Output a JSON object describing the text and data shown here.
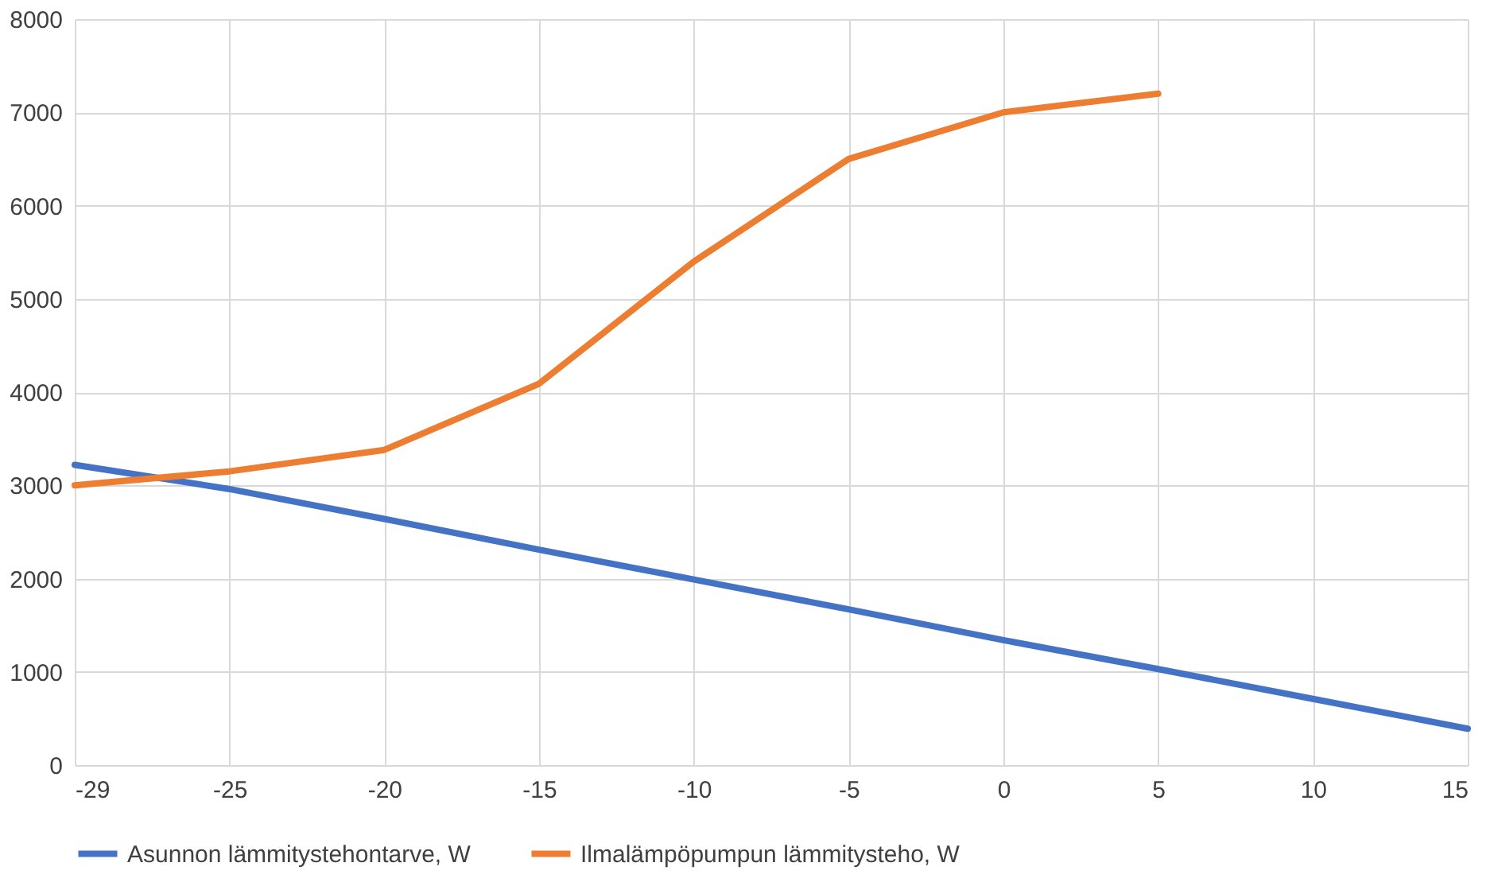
{
  "chart_data": {
    "type": "line",
    "categories": [
      "-29",
      "-25",
      "-20",
      "-15",
      "-10",
      "-5",
      "0",
      "5",
      "10",
      "15"
    ],
    "series": [
      {
        "name": "Asunnon lämmitystehontarve, W",
        "color": "#4472c4",
        "values": [
          3220,
          2960,
          2640,
          2310,
          1990,
          1670,
          1340,
          1030,
          710,
          390
        ]
      },
      {
        "name": "Ilmalämpöpumpun lämmitysteho, W",
        "color": "#ed7d31",
        "values": [
          3000,
          3150,
          3380,
          4090,
          5400,
          6500,
          7000,
          7200,
          null,
          null
        ]
      }
    ],
    "ylim": [
      0,
      8000
    ],
    "yticks": [
      0,
      1000,
      2000,
      3000,
      4000,
      5000,
      6000,
      7000,
      8000
    ],
    "grid": true,
    "legend": "bottom",
    "line_style": "solid",
    "marker": "none"
  }
}
